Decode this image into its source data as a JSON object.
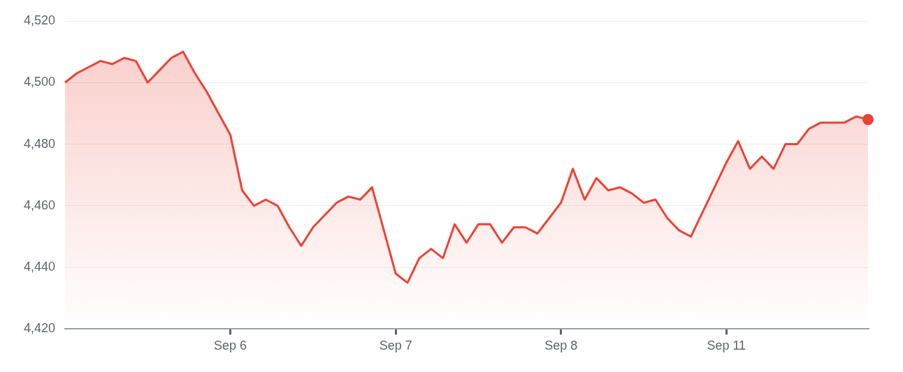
{
  "chart_data": {
    "type": "area",
    "categories": [
      null,
      null,
      null,
      null,
      null,
      null,
      null,
      null,
      null,
      null,
      null,
      null,
      null,
      null,
      "Sep 6",
      null,
      null,
      null,
      null,
      null,
      null,
      null,
      null,
      null,
      null,
      null,
      null,
      null,
      "Sep 7",
      null,
      null,
      null,
      null,
      null,
      null,
      null,
      null,
      null,
      null,
      null,
      null,
      null,
      "Sep 8",
      null,
      null,
      null,
      null,
      null,
      null,
      null,
      null,
      null,
      null,
      null,
      null,
      null,
      "Sep 11",
      null,
      null,
      null,
      null,
      null,
      null,
      null,
      null,
      null,
      null,
      null,
      null
    ],
    "series": [
      {
        "color": "#ea4335",
        "values": [
          4500,
          4503,
          4505,
          4507,
          4506,
          4508,
          4507,
          4500,
          4504,
          4508,
          4510,
          4503,
          4497,
          4490,
          4483,
          4465,
          4460,
          4462,
          4460,
          4453,
          4447,
          4453,
          4457,
          4461,
          4463,
          4462,
          4466,
          4452,
          4438,
          4435,
          4443,
          4446,
          4443,
          4454,
          4448,
          4454,
          4454,
          4448,
          4453,
          4453,
          4451,
          4456,
          4461,
          4472,
          4462,
          4469,
          4465,
          4466,
          4464,
          4461,
          4462,
          4456,
          4452,
          4450,
          4458,
          4466,
          4474,
          4481,
          4472,
          4476,
          4472,
          4480,
          4480,
          4485,
          4487,
          4487,
          4487,
          4489,
          4488
        ]
      }
    ],
    "ylim": [
      4420,
      4520
    ],
    "yticks": [
      {
        "value": 4420,
        "label": "4,420"
      },
      {
        "value": 4440,
        "label": "4,440"
      },
      {
        "value": 4460,
        "label": "4,460"
      },
      {
        "value": 4480,
        "label": "4,480"
      },
      {
        "value": 4500,
        "label": "4,500"
      },
      {
        "value": 4520,
        "label": "4,520"
      }
    ],
    "grid": "y",
    "legend": false
  }
}
